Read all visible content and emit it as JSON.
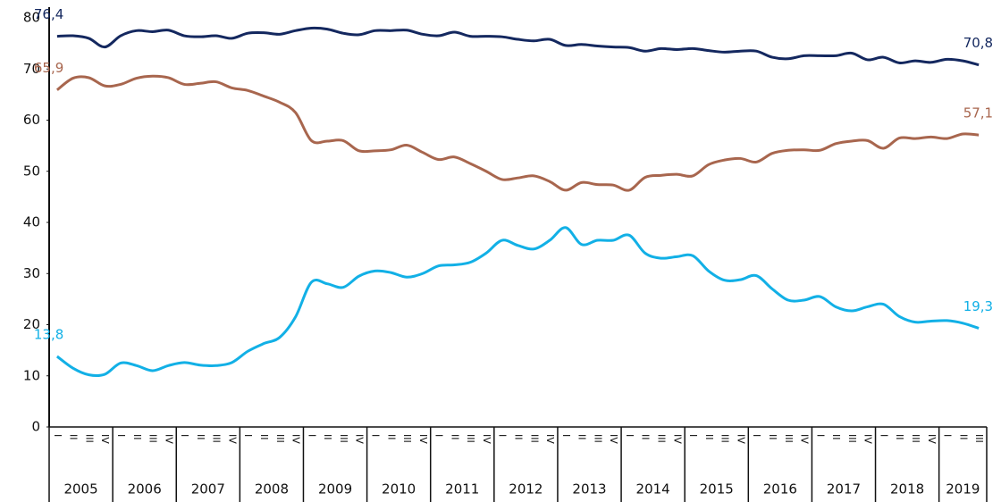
{
  "chart_data": {
    "type": "line",
    "categories": [
      "I",
      "II",
      "III",
      "IV",
      "I",
      "II",
      "III",
      "IV",
      "I",
      "II",
      "III",
      "IV",
      "I",
      "II",
      "III",
      "IV",
      "I",
      "II",
      "III",
      "IV",
      "I",
      "II",
      "III",
      "IV",
      "I",
      "II",
      "III",
      "IV",
      "I",
      "II",
      "III",
      "IV",
      "I",
      "II",
      "III",
      "IV",
      "I",
      "II",
      "III",
      "IV",
      "I",
      "II",
      "III",
      "IV",
      "I",
      "II",
      "III",
      "IV",
      "I",
      "II",
      "III",
      "IV",
      "I",
      "II",
      "III",
      "IV",
      "I",
      "II",
      "III"
    ],
    "years": [
      "2005",
      "2006",
      "2007",
      "2008",
      "2009",
      "2010",
      "2011",
      "2012",
      "2013",
      "2014",
      "2015",
      "2016",
      "2017",
      "2018",
      "2019"
    ],
    "ylim": [
      0,
      80
    ],
    "yticks": [
      0,
      10,
      20,
      30,
      40,
      50,
      60,
      70,
      80
    ],
    "series": [
      {
        "color": "#14285f",
        "values": [
          76.4,
          76.5,
          76.0,
          74.3,
          76.5,
          77.5,
          77.3,
          77.6,
          76.5,
          76.3,
          76.5,
          76.0,
          77.0,
          77.1,
          76.8,
          77.5,
          78.0,
          77.8,
          77.0,
          76.7,
          77.5,
          77.5,
          77.6,
          76.8,
          76.5,
          77.2,
          76.4,
          76.4,
          76.3,
          75.8,
          75.5,
          75.8,
          74.6,
          74.8,
          74.5,
          74.3,
          74.2,
          73.5,
          74.0,
          73.8,
          74.0,
          73.6,
          73.3,
          73.5,
          73.5,
          72.3,
          72.0,
          72.6,
          72.6,
          72.6,
          73.1,
          71.8,
          72.3,
          71.2,
          71.6,
          71.3,
          71.9,
          71.6,
          70.8
        ],
        "value_labels": [
          "76,4",
          null,
          null,
          null,
          null,
          null,
          null,
          null,
          null,
          null,
          null,
          null,
          null,
          null,
          null,
          null,
          null,
          null,
          null,
          null,
          null,
          null,
          null,
          null,
          null,
          null,
          null,
          null,
          null,
          null,
          null,
          null,
          null,
          null,
          null,
          null,
          null,
          null,
          null,
          null,
          null,
          null,
          null,
          null,
          null,
          null,
          null,
          null,
          null,
          null,
          null,
          null,
          null,
          null,
          null,
          null,
          null,
          null,
          "70,8"
        ]
      },
      {
        "color": "#a8664e",
        "values": [
          65.9,
          68.2,
          68.3,
          66.7,
          67.0,
          68.2,
          68.6,
          68.3,
          67.0,
          67.2,
          67.5,
          66.3,
          65.8,
          64.7,
          63.5,
          61.5,
          56.0,
          55.9,
          56.0,
          54.0,
          54.0,
          54.2,
          55.1,
          53.7,
          52.3,
          52.8,
          51.5,
          50.0,
          48.4,
          48.7,
          49.1,
          48.0,
          46.3,
          47.8,
          47.4,
          47.3,
          46.3,
          48.8,
          49.2,
          49.4,
          49.1,
          51.3,
          52.2,
          52.5,
          51.8,
          53.5,
          54.1,
          54.2,
          54.1,
          55.4,
          55.9,
          56.0,
          54.5,
          56.5,
          56.4,
          56.7,
          56.4,
          57.3,
          57.1
        ],
        "value_labels": [
          "65,9",
          null,
          null,
          null,
          null,
          null,
          null,
          null,
          null,
          null,
          null,
          null,
          null,
          null,
          null,
          null,
          null,
          null,
          null,
          null,
          null,
          null,
          null,
          null,
          null,
          null,
          null,
          null,
          null,
          null,
          null,
          null,
          null,
          null,
          null,
          null,
          null,
          null,
          null,
          null,
          null,
          null,
          null,
          null,
          null,
          null,
          null,
          null,
          null,
          null,
          null,
          null,
          null,
          null,
          null,
          null,
          null,
          null,
          "57,1"
        ]
      },
      {
        "color": "#12b0e6",
        "values": [
          13.8,
          11.5,
          10.2,
          10.3,
          12.5,
          12.0,
          11.0,
          12.0,
          12.6,
          12.1,
          12.0,
          12.6,
          14.8,
          16.3,
          17.5,
          21.5,
          28.3,
          28.0,
          27.3,
          29.5,
          30.5,
          30.2,
          29.3,
          30.0,
          31.5,
          31.7,
          32.2,
          34.0,
          36.5,
          35.5,
          34.8,
          36.5,
          39.0,
          35.7,
          36.5,
          36.5,
          37.5,
          34.0,
          33.0,
          33.3,
          33.5,
          30.5,
          28.7,
          28.8,
          29.6,
          27.0,
          24.8,
          24.8,
          25.5,
          23.5,
          22.7,
          23.5,
          24.0,
          21.6,
          20.5,
          20.7,
          20.8,
          20.3,
          19.3
        ],
        "value_labels": [
          "13,8",
          null,
          null,
          null,
          null,
          null,
          null,
          null,
          null,
          null,
          null,
          null,
          null,
          null,
          null,
          null,
          null,
          null,
          null,
          null,
          null,
          null,
          null,
          null,
          null,
          null,
          null,
          null,
          null,
          null,
          null,
          null,
          null,
          null,
          null,
          null,
          null,
          null,
          null,
          null,
          null,
          null,
          null,
          null,
          null,
          null,
          null,
          null,
          null,
          null,
          null,
          null,
          null,
          null,
          null,
          null,
          null,
          null,
          "19,3"
        ]
      }
    ]
  }
}
